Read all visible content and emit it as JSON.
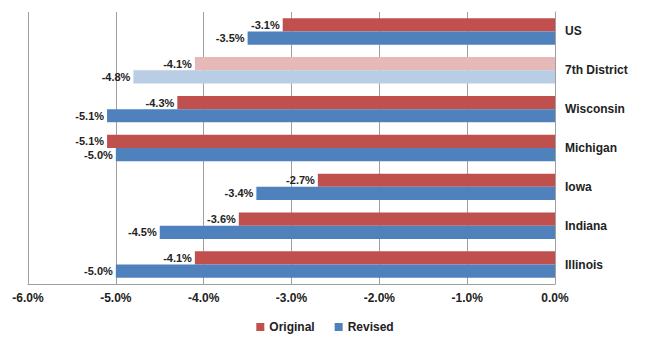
{
  "chart_data": {
    "type": "bar",
    "orientation": "horizontal",
    "categories": [
      "US",
      "7th District",
      "Wisconsin",
      "Michigan",
      "Iowa",
      "Indiana",
      "Illinois"
    ],
    "series": [
      {
        "name": "Original",
        "color": "#c0504d",
        "colors": [
          "#c0504d",
          "#e6b9b8",
          "#c0504d",
          "#c0504d",
          "#c0504d",
          "#c0504d",
          "#c0504d"
        ],
        "values": [
          -3.1,
          -4.1,
          -4.3,
          -5.1,
          -2.7,
          -3.6,
          -4.1
        ],
        "value_labels": [
          "-3.1%",
          "-4.1%",
          "-4.3%",
          "-5.1%",
          "-2.7%",
          "-3.6%",
          "-4.1%"
        ]
      },
      {
        "name": "Revised",
        "color": "#4f81bd",
        "colors": [
          "#4f81bd",
          "#b9cde5",
          "#4f81bd",
          "#4f81bd",
          "#4f81bd",
          "#4f81bd",
          "#4f81bd"
        ],
        "values": [
          -3.5,
          -4.8,
          -5.1,
          -5.0,
          -3.4,
          -4.5,
          -5.0
        ],
        "value_labels": [
          "-3.5%",
          "-4.8%",
          "-5.1%",
          "-5.0%",
          "-3.4%",
          "-4.5%",
          "-5.0%"
        ]
      }
    ],
    "xlim": [
      -6,
      0
    ],
    "xticks": [
      {
        "value": -6,
        "label": "-6.0%"
      },
      {
        "value": -5,
        "label": "-5.0%"
      },
      {
        "value": -4,
        "label": "-4.0%"
      },
      {
        "value": -3,
        "label": "-3.0%"
      },
      {
        "value": -2,
        "label": "-2.0%"
      },
      {
        "value": -1,
        "label": "-1.0%"
      },
      {
        "value": 0,
        "label": "0.0%"
      }
    ],
    "grid": true,
    "legend": "bottom",
    "data_labels": true
  }
}
